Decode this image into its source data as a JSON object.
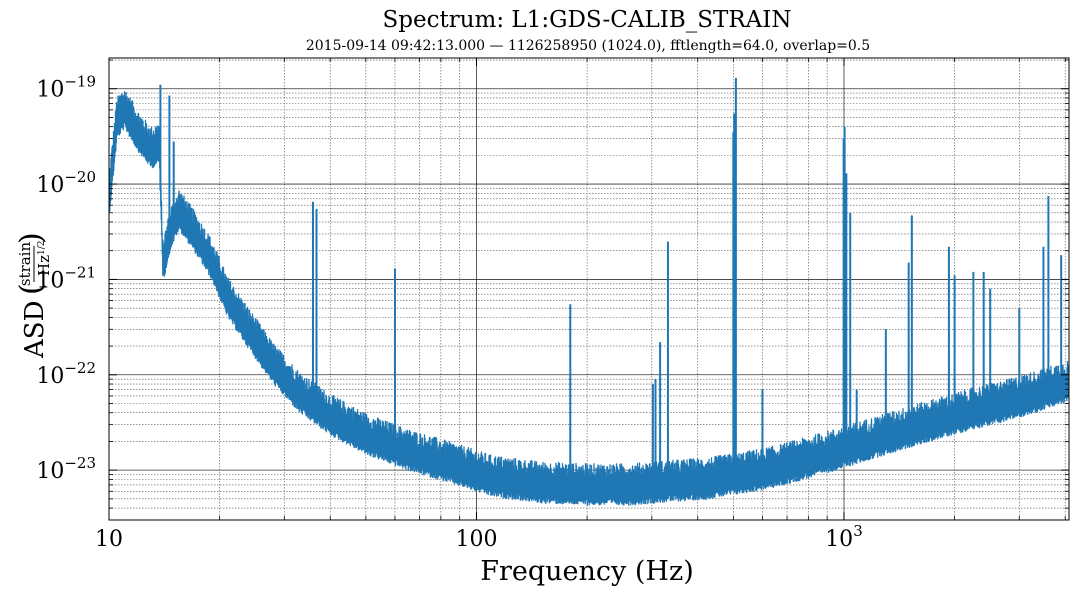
{
  "chart_data": {
    "type": "line",
    "title": "Spectrum: L1:GDS-CALIB_STRAIN",
    "subtitle": "2015-09-14 09:42:13.000 — 1126258950 (1024.0), fftlength=64.0, overlap=0.5",
    "xlabel": "Frequency (Hz)",
    "ylabel": {
      "prefix": "ASD",
      "num": "strain",
      "den_base": "Hz",
      "den_exp": "1/2"
    },
    "xscale": "log",
    "yscale": "log",
    "xlim": [
      10,
      4096
    ],
    "ylim": [
      3e-24,
      2.1e-19
    ],
    "grid": true,
    "line_color": "#1f77b4",
    "xticks": [
      {
        "value": 10,
        "label": "10"
      },
      {
        "value": 100,
        "label": "100"
      },
      {
        "value": 1000,
        "base": "10",
        "exp": "3"
      }
    ],
    "yticks": [
      {
        "value": 1e-23,
        "base": "10",
        "exp": "−23"
      },
      {
        "value": 1e-22,
        "base": "10",
        "exp": "−22"
      },
      {
        "value": 1e-21,
        "base": "10",
        "exp": "−21"
      },
      {
        "value": 1e-20,
        "base": "10",
        "exp": "−20"
      },
      {
        "value": 1e-19,
        "base": "10",
        "exp": "−19"
      }
    ],
    "series": [
      {
        "noise_floor": {
          "x": [
            10,
            10.5,
            11,
            12,
            13,
            13.7,
            14,
            14.7,
            15.5,
            17,
            19,
            21,
            24,
            28,
            33,
            40,
            50,
            65,
            85,
            110,
            150,
            200,
            260,
            330,
            420,
            520,
            650,
            800,
            1000,
            1300,
            1700,
            2200,
            2800,
            3500,
            4096
          ],
          "y": [
            7e-21,
            4.5e-20,
            5.8e-20,
            3.3e-20,
            2.2e-20,
            2.5e-20,
            1.4e-21,
            3.2e-21,
            5e-21,
            3e-21,
            1.5e-21,
            6e-22,
            2.8e-22,
            1.2e-22,
            6e-23,
            3.5e-23,
            2.2e-23,
            1.5e-23,
            1.1e-23,
            8e-24,
            6.8e-24,
            6.5e-24,
            6.5e-24,
            7e-24,
            7.5e-24,
            8.5e-24,
            1e-23,
            1.25e-23,
            1.6e-23,
            2.2e-23,
            3e-23,
            4e-23,
            5e-23,
            6.5e-23,
            8e-23
          ]
        },
        "peaks": [
          {
            "x": 13.8,
            "y": 1.1e-19
          },
          {
            "x": 14.6,
            "y": 8.5e-20
          },
          {
            "x": 15.0,
            "y": 2.8e-20
          },
          {
            "x": 35.9,
            "y": 6.5e-21
          },
          {
            "x": 36.7,
            "y": 5.5e-21
          },
          {
            "x": 60.0,
            "y": 1.3e-21
          },
          {
            "x": 180.0,
            "y": 5.5e-22
          },
          {
            "x": 302.0,
            "y": 8e-23
          },
          {
            "x": 307.0,
            "y": 9e-23
          },
          {
            "x": 316.0,
            "y": 2.2e-22
          },
          {
            "x": 331.9,
            "y": 2.5e-21
          },
          {
            "x": 500.0,
            "y": 3.5e-20
          },
          {
            "x": 503.0,
            "y": 5.5e-20
          },
          {
            "x": 508.0,
            "y": 1.3e-19
          },
          {
            "x": 600.0,
            "y": 7e-23
          },
          {
            "x": 998.0,
            "y": 3e-20
          },
          {
            "x": 1004.0,
            "y": 4e-20
          },
          {
            "x": 1015.0,
            "y": 1.3e-20
          },
          {
            "x": 1040.0,
            "y": 5e-21
          },
          {
            "x": 1083.0,
            "y": 7e-23
          },
          {
            "x": 1300.0,
            "y": 3e-22
          },
          {
            "x": 1500.0,
            "y": 1.5e-21
          },
          {
            "x": 1530.0,
            "y": 4.7e-21
          },
          {
            "x": 1930.0,
            "y": 2.2e-21
          },
          {
            "x": 2000.0,
            "y": 1.1e-21
          },
          {
            "x": 2250.0,
            "y": 1.2e-21
          },
          {
            "x": 2400.0,
            "y": 1.2e-21
          },
          {
            "x": 2500.0,
            "y": 8e-22
          },
          {
            "x": 3000.0,
            "y": 5e-22
          },
          {
            "x": 3490.0,
            "y": 2.2e-21
          },
          {
            "x": 3600.0,
            "y": 7.5e-21
          },
          {
            "x": 3900.0,
            "y": 1.8e-21
          }
        ]
      }
    ]
  }
}
